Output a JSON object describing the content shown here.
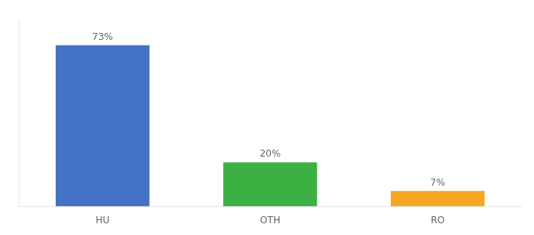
{
  "chart_data": {
    "type": "bar",
    "categories": [
      "HU",
      "OTH",
      "RO"
    ],
    "values": [
      73,
      20,
      7
    ],
    "value_labels": [
      "73%",
      "20%",
      "7%"
    ],
    "colors": [
      "#4472c4",
      "#3cb043",
      "#f5a623"
    ],
    "ylim": [
      0,
      85
    ],
    "grid": false,
    "data_labels": true,
    "tick_labels": "x"
  }
}
